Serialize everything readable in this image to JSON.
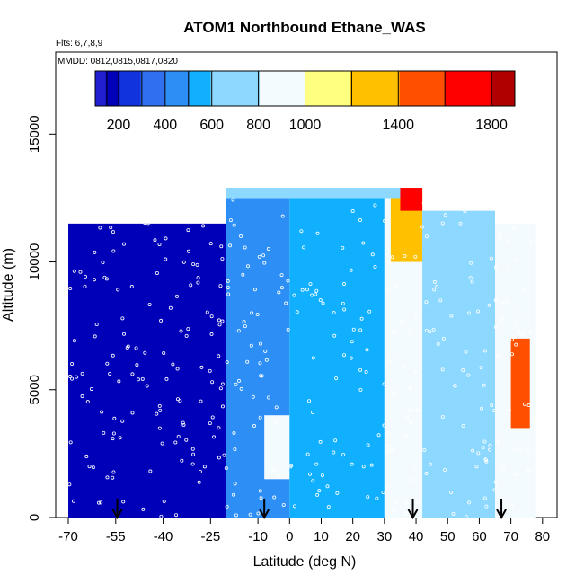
{
  "chart_data": {
    "type": "heatmap",
    "title": "ATOM1 Northbound Ethane_WAS",
    "subtitle_flights": "Flts: 6,7,8,9",
    "subtitle_dates": "MMDD: 0812,0815,0817,0820",
    "xlabel": "Latitude (deg N)",
    "ylabel": "Altitude (m)",
    "xlim": [
      -70,
      80
    ],
    "ylim": [
      0,
      18000
    ],
    "x_ticks": [
      -70,
      -55,
      -40,
      -25,
      -10,
      0,
      10,
      20,
      30,
      40,
      50,
      60,
      70,
      80
    ],
    "y_ticks": [
      0,
      5000,
      10000,
      15000
    ],
    "colorbar": {
      "range": [
        100,
        1900
      ],
      "tick_values": [
        200,
        400,
        600,
        800,
        1000,
        1400,
        1800
      ],
      "boundaries": [
        100,
        150,
        200,
        300,
        400,
        500,
        600,
        800,
        1000,
        1200,
        1400,
        1600,
        1800,
        1900
      ],
      "colors": [
        "#8a2be2",
        "#2020d0",
        "#0000b8",
        "#1133dd",
        "#3070f0",
        "#2d8ff5",
        "#10b0ff",
        "#8cd8ff",
        "#f4fbff",
        "#ffff80",
        "#ffc000",
        "#ff5000",
        "#ff0000",
        "#b00000",
        "#a01a1a"
      ]
    },
    "flight_arrow_latitudes": [
      -54.5,
      -8,
      39,
      67
    ],
    "regions": [
      {
        "lat": [
          -70,
          -20
        ],
        "alt": [
          0,
          11500
        ],
        "value": 190
      },
      {
        "lat": [
          -20,
          0
        ],
        "alt": [
          0,
          12500
        ],
        "value": 420
      },
      {
        "lat": [
          -8,
          2
        ],
        "alt": [
          1500,
          4000
        ],
        "value": 820
      },
      {
        "lat": [
          0,
          30
        ],
        "alt": [
          0,
          12500
        ],
        "value": 560
      },
      {
        "lat": [
          30,
          42
        ],
        "alt": [
          0,
          12700
        ],
        "value": 880
      },
      {
        "lat": [
          32,
          42
        ],
        "alt": [
          10000,
          12700
        ],
        "value": 1350
      },
      {
        "lat": [
          42,
          65
        ],
        "alt": [
          0,
          12000
        ],
        "value": 640
      },
      {
        "lat": [
          65,
          78
        ],
        "alt": [
          0,
          11500
        ],
        "value": 900
      },
      {
        "lat": [
          70,
          76
        ],
        "alt": [
          3500,
          7000
        ],
        "value": 1500
      },
      {
        "lat": [
          -20,
          35
        ],
        "alt": [
          12500,
          12900
        ],
        "value": 650
      },
      {
        "lat": [
          35,
          42
        ],
        "alt": [
          12000,
          12900
        ],
        "value": 1600
      }
    ]
  }
}
